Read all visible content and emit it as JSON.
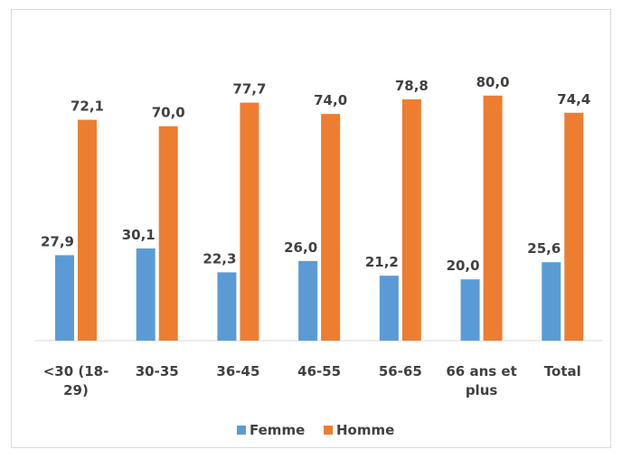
{
  "chart_data": {
    "type": "bar",
    "categories": [
      [
        "<30 (18-",
        "29)"
      ],
      [
        "30-35"
      ],
      [
        "36-45"
      ],
      [
        "46-55"
      ],
      [
        "56-65"
      ],
      [
        "66 ans et",
        "plus"
      ],
      [
        "Total"
      ]
    ],
    "series": [
      {
        "name": "Femme",
        "color": "#5b9bd5",
        "values": [
          27.9,
          30.1,
          22.3,
          26.0,
          21.2,
          20.0,
          25.6
        ],
        "labels": [
          "27,9",
          "30,1",
          "22,3",
          "26,0",
          "21,2",
          "20,0",
          "25,6"
        ]
      },
      {
        "name": "Homme",
        "color": "#ed7d31",
        "values": [
          72.1,
          70.0,
          77.7,
          74.0,
          78.8,
          80.0,
          74.4
        ],
        "labels": [
          "72,1",
          "70,0",
          "77,7",
          "74,0",
          "78,8",
          "80,0",
          "74,4"
        ]
      }
    ],
    "ylim": [
      0,
      80
    ],
    "grid": false,
    "legend_position": "bottom",
    "title": "",
    "xlabel": "",
    "ylabel": ""
  }
}
